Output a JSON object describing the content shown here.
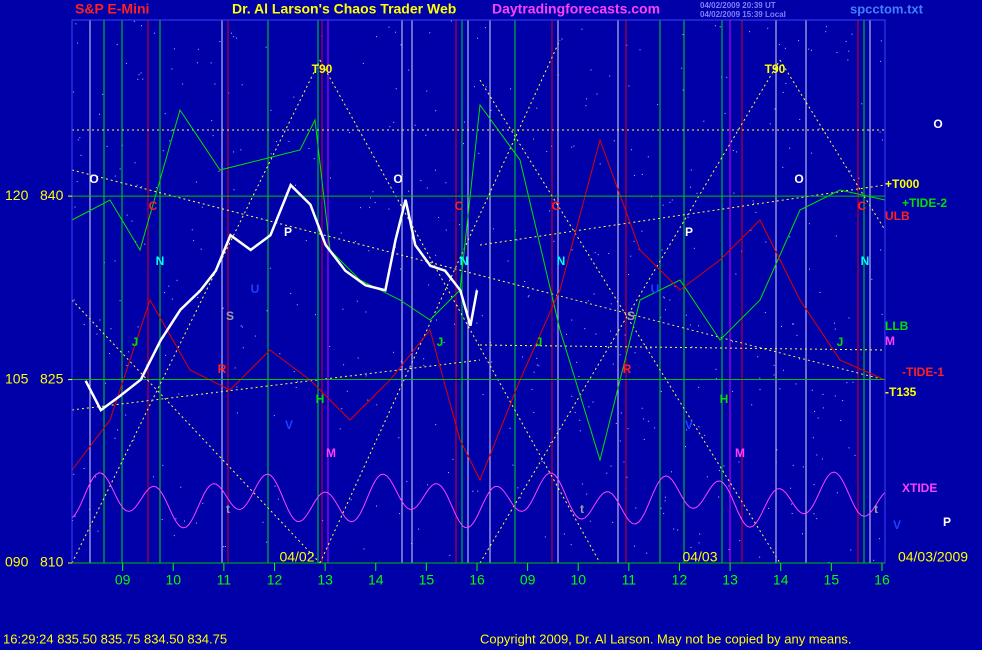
{
  "chart_data": {
    "type": "line",
    "title": "S&P E-Mini",
    "header": {
      "site_title": "Dr. Al Larson's Chaos Trader Web",
      "site_url": "Daytradingforecasts.com",
      "time_ut": "04/02/2009 20:39 UT",
      "time_local": "04/02/2009 15:39 Local",
      "file_name": "spcctom.txt"
    },
    "footer": {
      "quote": "16:29:24  835.50 835.75 834.50 834.75",
      "copyright": "Copyright 2009, Dr. Al Larson. May not be copied by any means."
    },
    "x": [
      8.27,
      8.57,
      8.96,
      9.36,
      9.75,
      10.14,
      10.54,
      10.84,
      11.13,
      11.53,
      11.92,
      12.32,
      12.71,
      13.01,
      13.4,
      13.8,
      14.19,
      14.39,
      14.59,
      14.78,
      15.08,
      15.37,
      15.67,
      15.87,
      16.0
    ],
    "series": [
      {
        "color": "#ffffff",
        "values": [
          824.9,
          822.5,
          823.7,
          825.0,
          828.2,
          830.7,
          832.3,
          833.9,
          836.8,
          835.6,
          836.8,
          840.9,
          839.3,
          836.0,
          833.9,
          832.7,
          832.3,
          836.4,
          839.7,
          836.0,
          834.3,
          833.9,
          832.3,
          829.4,
          832.3
        ]
      }
    ],
    "xlim": [
      8.0,
      24.06
    ],
    "xticks": [
      {
        "value": 9,
        "label": "09"
      },
      10,
      11,
      12,
      13,
      14,
      15,
      16,
      {
        "value": 17,
        "label": "09"
      },
      {
        "value": 18,
        "label": "10"
      },
      {
        "value": 19,
        "label": "11"
      },
      {
        "value": 20,
        "label": "12"
      },
      {
        "value": 21,
        "label": "13"
      },
      {
        "value": 22,
        "label": "14"
      },
      {
        "value": 23,
        "label": "15"
      },
      {
        "value": 24,
        "label": "16"
      }
    ],
    "ylim": [
      810,
      854.4
    ],
    "yticks": [
      810,
      825,
      840
    ],
    "y2lim": [
      90,
      134.4
    ],
    "y2ticks": [
      {
        "value": 90,
        "label": "090"
      },
      105,
      120
    ],
    "date_labels": [
      "04/02",
      "04/03",
      "04/03/2009"
    ],
    "annotations": [
      "T90",
      "T90",
      "O",
      "O",
      "O",
      "O",
      "C",
      "C",
      "C",
      "C",
      "N",
      "N",
      "N",
      "N",
      "P",
      "P",
      "S",
      "S",
      "U",
      "U",
      "J",
      "J",
      "J",
      "J",
      "R",
      "R",
      "H",
      "H",
      "M",
      "M",
      "V",
      "V",
      "t",
      "t",
      "t",
      "P"
    ],
    "right_labels": [
      "+T000",
      "+TIDE-2",
      "ULB",
      "LLB",
      "M",
      "-TIDE-1",
      "-T135",
      "XTIDE",
      "V"
    ],
    "grid": true
  }
}
